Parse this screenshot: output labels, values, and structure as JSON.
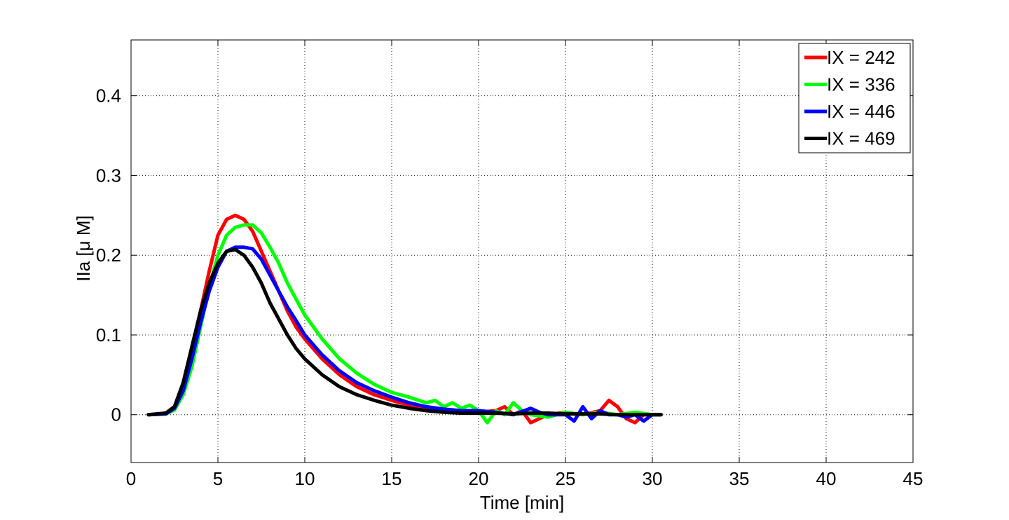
{
  "chart_data": {
    "type": "line",
    "title": "",
    "xlabel": "Time [min]",
    "ylabel": "IIa [μ M]",
    "xlim": [
      0,
      45
    ],
    "ylim": [
      -0.06,
      0.47
    ],
    "xticks": [
      0,
      5,
      10,
      15,
      20,
      25,
      30,
      35,
      40,
      45
    ],
    "yticks": [
      0,
      0.1,
      0.2,
      0.3,
      0.4
    ],
    "xtick_labels": [
      "0",
      "5",
      "10",
      "15",
      "20",
      "25",
      "30",
      "35",
      "40",
      "45"
    ],
    "ytick_labels": [
      "0",
      "0.1",
      "0.2",
      "0.3",
      "0.4"
    ],
    "grid": true,
    "legend_position": "top-right",
    "series": [
      {
        "name": "IX = 242",
        "color": "#ff0000",
        "x": [
          1,
          2,
          2.5,
          3,
          3.5,
          4,
          4.5,
          5,
          5.5,
          6,
          6.5,
          7,
          7.5,
          8,
          8.5,
          9,
          9.5,
          10,
          11,
          12,
          13,
          14,
          15,
          16,
          17,
          18,
          19,
          20,
          21,
          21.5,
          22,
          22.5,
          23,
          23.5,
          24,
          25,
          26,
          27,
          27.5,
          28,
          28.5,
          29,
          29.5,
          30,
          30.5
        ],
        "y": [
          0,
          0.002,
          0.01,
          0.035,
          0.08,
          0.13,
          0.18,
          0.225,
          0.245,
          0.25,
          0.245,
          0.23,
          0.205,
          0.18,
          0.155,
          0.13,
          0.11,
          0.095,
          0.07,
          0.05,
          0.035,
          0.025,
          0.018,
          0.012,
          0.008,
          0.005,
          0.003,
          0.003,
          0.005,
          0.01,
          0.0,
          0.005,
          -0.01,
          -0.005,
          0.0,
          0.003,
          0.0,
          0.005,
          0.018,
          0.01,
          -0.005,
          -0.01,
          0.0,
          0.0,
          0.0
        ]
      },
      {
        "name": "IX = 336",
        "color": "#00ff00",
        "x": [
          1,
          2,
          2.5,
          3,
          3.5,
          4,
          4.5,
          5,
          5.5,
          6,
          6.5,
          7,
          7.5,
          8,
          8.5,
          9,
          9.5,
          10,
          11,
          12,
          13,
          14,
          15,
          16,
          17,
          17.5,
          18,
          18.5,
          19,
          19.5,
          20,
          20.5,
          21,
          21.5,
          22,
          22.5,
          23,
          24,
          25,
          26,
          27,
          28,
          29,
          30,
          30.5
        ],
        "y": [
          0,
          0.001,
          0.006,
          0.025,
          0.06,
          0.11,
          0.16,
          0.2,
          0.225,
          0.235,
          0.238,
          0.238,
          0.228,
          0.21,
          0.19,
          0.165,
          0.145,
          0.125,
          0.095,
          0.07,
          0.052,
          0.038,
          0.028,
          0.022,
          0.015,
          0.018,
          0.01,
          0.015,
          0.008,
          0.012,
          0.005,
          -0.01,
          0.005,
          0.0,
          0.015,
          0.005,
          0.0,
          -0.003,
          0.003,
          0.0,
          0.003,
          0.0,
          0.003,
          0.0,
          0.0
        ]
      },
      {
        "name": "IX = 446",
        "color": "#0000ff",
        "x": [
          1,
          2,
          2.5,
          3,
          3.5,
          4,
          4.5,
          5,
          5.5,
          6,
          6.5,
          7,
          7.5,
          8,
          8.5,
          9,
          9.5,
          10,
          11,
          12,
          13,
          14,
          15,
          16,
          17,
          18,
          19,
          20,
          21,
          22,
          23,
          23.5,
          24,
          25,
          25.5,
          26,
          26.5,
          27,
          27.5,
          28,
          28.5,
          29,
          29.5,
          30,
          30.5
        ],
        "y": [
          0,
          0.001,
          0.008,
          0.03,
          0.07,
          0.115,
          0.155,
          0.185,
          0.205,
          0.21,
          0.21,
          0.208,
          0.195,
          0.175,
          0.155,
          0.135,
          0.118,
          0.1,
          0.075,
          0.055,
          0.04,
          0.03,
          0.022,
          0.015,
          0.01,
          0.007,
          0.005,
          0.005,
          0.003,
          0.0,
          0.008,
          0.003,
          0.0,
          0.0,
          -0.008,
          0.01,
          -0.005,
          0.005,
          0.0,
          0.0,
          -0.003,
          0.0,
          -0.008,
          0.0,
          0.0
        ]
      },
      {
        "name": "IX = 469",
        "color": "#000000",
        "x": [
          1,
          2,
          2.5,
          3,
          3.5,
          4,
          4.5,
          5,
          5.5,
          6,
          6.5,
          7,
          7.5,
          8,
          8.5,
          9,
          9.5,
          10,
          11,
          12,
          13,
          14,
          15,
          16,
          17,
          18,
          19,
          20,
          21,
          22,
          23,
          24,
          25,
          26,
          27,
          28,
          29,
          30,
          30.5
        ],
        "y": [
          0,
          0.002,
          0.01,
          0.04,
          0.085,
          0.13,
          0.165,
          0.19,
          0.205,
          0.207,
          0.2,
          0.185,
          0.165,
          0.14,
          0.12,
          0.1,
          0.083,
          0.07,
          0.05,
          0.035,
          0.025,
          0.018,
          0.012,
          0.008,
          0.005,
          0.003,
          0.002,
          0.002,
          0.002,
          0.001,
          0.002,
          0.002,
          0.001,
          0.001,
          0.001,
          0.0,
          0.0,
          0.0,
          0.0
        ]
      }
    ]
  }
}
